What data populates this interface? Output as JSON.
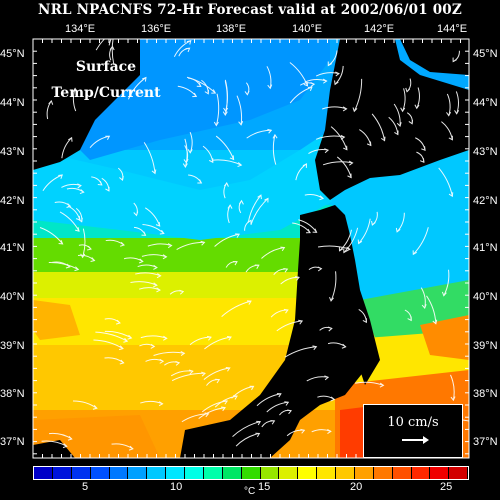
{
  "title": "NRL NPACNFS 72-Hr Forecast valid at 2002/06/01 00Z",
  "layer_title": [
    "Surface",
    "Temp/Current"
  ],
  "lon_labels": [
    "134°E",
    "136°E",
    "138°E",
    "140°E",
    "142°E",
    "144°E"
  ],
  "lat_labels": [
    "45°N",
    "44°N",
    "43°N",
    "42°N",
    "41°N",
    "40°N",
    "39°N",
    "38°N",
    "37°N"
  ],
  "scale": {
    "label": "10 cm/s"
  },
  "colorbar": {
    "unit": "°C",
    "tick_labels": [
      "5",
      "10",
      "15",
      "20",
      "25"
    ],
    "colors": [
      "#0000c8",
      "#0014dc",
      "#0032f0",
      "#0050ff",
      "#0078ff",
      "#00a0ff",
      "#00c8ff",
      "#00e6ff",
      "#00ffe6",
      "#00ffaa",
      "#00e664",
      "#32dc00",
      "#96e600",
      "#dcf000",
      "#ffff00",
      "#ffe600",
      "#ffc800",
      "#ffa000",
      "#ff7800",
      "#ff5000",
      "#ff2800",
      "#f00000",
      "#d20000"
    ]
  }
}
